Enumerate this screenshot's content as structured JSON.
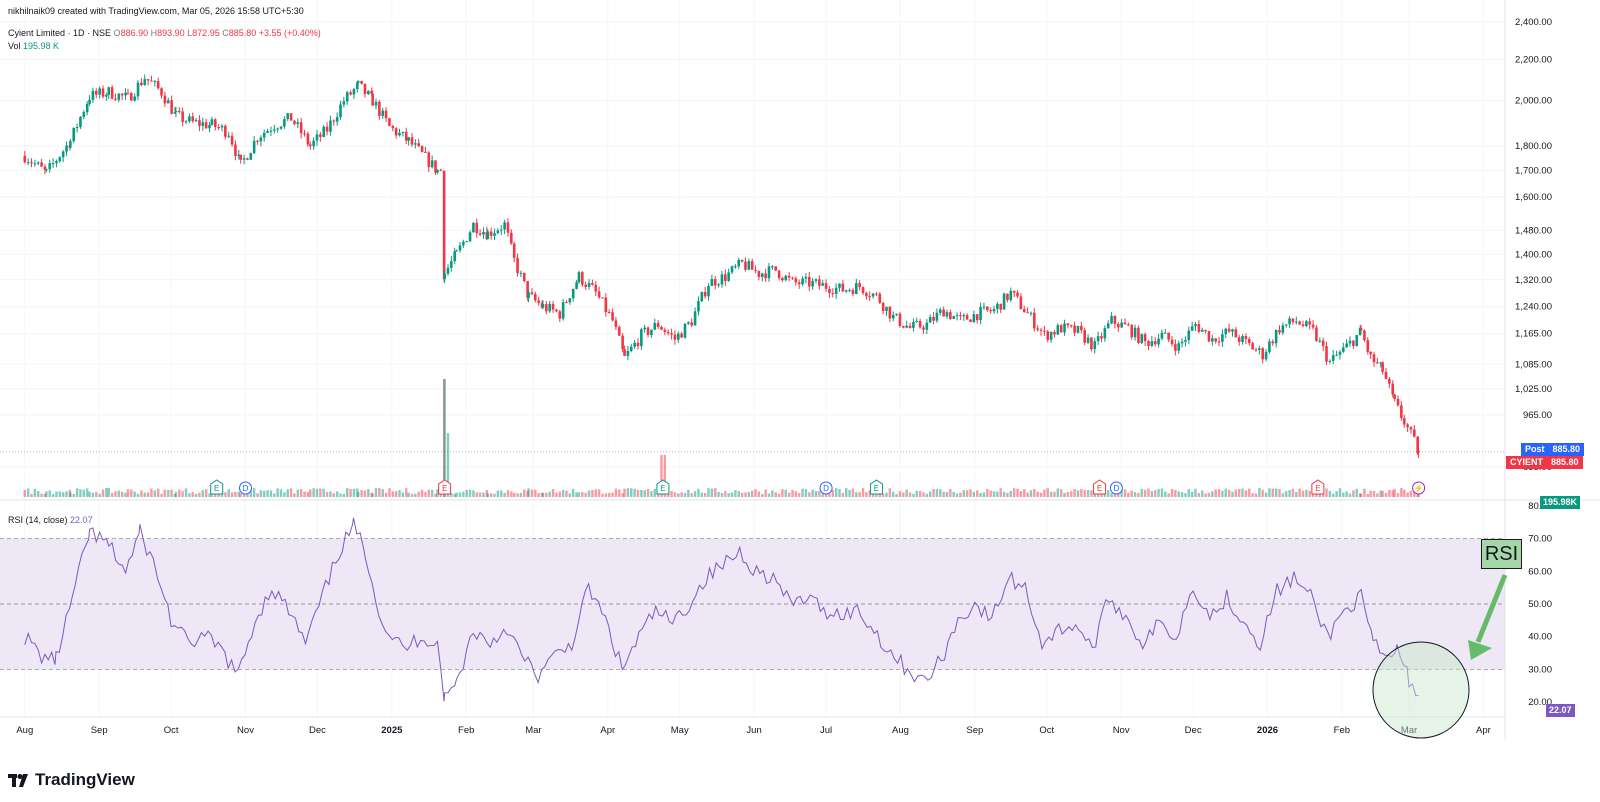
{
  "header": {
    "credit": "nikhilnaik09 created with TradingView.com, Mar 05, 2026 15:58 UTC+5:30",
    "symbol": "Cyient Limited · 1D · NSE",
    "open_label": "O",
    "open": "886.90",
    "high_label": "H",
    "high": "893.90",
    "low_label": "L",
    "low": "872.95",
    "close_label": "C",
    "close": "885.80",
    "change": "+3.55 (+0.40%)",
    "vol_label": "Vol",
    "vol_value": "195.98 K"
  },
  "rsi_header": {
    "label": "RSI (14, close)",
    "value": "22.07"
  },
  "badges": {
    "post_label": "Post",
    "post_value": "885.80",
    "ticker_label": "CYIENT",
    "ticker_value": "885.80",
    "vol_value": "195.98K",
    "rsi_value": "22.07"
  },
  "annotation": {
    "text": "RSI"
  },
  "brand": {
    "name": "TradingView"
  },
  "colors": {
    "up": "#089981",
    "down": "#f23645",
    "rsi_line": "#7e57c2",
    "rsi_band": "#ede7f6",
    "accent_blue": "#2962ff"
  },
  "chart_data": [
    {
      "type": "candlestick",
      "scale": "log",
      "price_axis_ticks": [
        2400,
        2200,
        2000,
        1800,
        1700,
        1600,
        1480,
        1400,
        1320,
        1240,
        1165,
        1085,
        1025,
        965,
        855
      ],
      "time_axis_labels": [
        "Aug",
        "Sep",
        "Oct",
        "Nov",
        "Dec",
        "2025",
        "Feb",
        "Mar",
        "Apr",
        "May",
        "Jun",
        "Jul",
        "Aug",
        "Sep",
        "Oct",
        "Nov",
        "Dec",
        "2026",
        "Feb",
        "Mar",
        "Apr"
      ],
      "price_path": [
        {
          "date": "2024-08-01",
          "close": 1760
        },
        {
          "date": "2024-08-10",
          "close": 1690
        },
        {
          "date": "2024-08-20",
          "close": 1820
        },
        {
          "date": "2024-08-28",
          "close": 2020
        },
        {
          "date": "2024-09-05",
          "close": 2040
        },
        {
          "date": "2024-09-13",
          "close": 2010
        },
        {
          "date": "2024-09-20",
          "close": 2110
        },
        {
          "date": "2024-09-27",
          "close": 2040
        },
        {
          "date": "2024-10-03",
          "close": 1930
        },
        {
          "date": "2024-10-10",
          "close": 1900
        },
        {
          "date": "2024-10-18",
          "close": 1890
        },
        {
          "date": "2024-10-25",
          "close": 1860
        },
        {
          "date": "2024-10-30",
          "close": 1720
        },
        {
          "date": "2024-11-06",
          "close": 1840
        },
        {
          "date": "2024-11-13",
          "close": 1890
        },
        {
          "date": "2024-11-20",
          "close": 1920
        },
        {
          "date": "2024-11-28",
          "close": 1800
        },
        {
          "date": "2024-12-05",
          "close": 1870
        },
        {
          "date": "2024-12-12",
          "close": 2000
        },
        {
          "date": "2024-12-18",
          "close": 2070
        },
        {
          "date": "2024-12-24",
          "close": 2000
        },
        {
          "date": "2024-12-31",
          "close": 1880
        },
        {
          "date": "2025-01-08",
          "close": 1820
        },
        {
          "date": "2025-01-15",
          "close": 1750
        },
        {
          "date": "2025-01-20",
          "close": 1700
        },
        {
          "date": "2025-01-23",
          "close": 1340
        },
        {
          "date": "2025-01-28",
          "close": 1400
        },
        {
          "date": "2025-02-04",
          "close": 1500
        },
        {
          "date": "2025-02-10",
          "close": 1470
        },
        {
          "date": "2025-02-17",
          "close": 1500
        },
        {
          "date": "2025-02-21",
          "close": 1380
        },
        {
          "date": "2025-02-27",
          "close": 1270
        },
        {
          "date": "2025-03-05",
          "close": 1240
        },
        {
          "date": "2025-03-12",
          "close": 1220
        },
        {
          "date": "2025-03-20",
          "close": 1330
        },
        {
          "date": "2025-03-27",
          "close": 1280
        },
        {
          "date": "2025-04-03",
          "close": 1200
        },
        {
          "date": "2025-04-08",
          "close": 1100
        },
        {
          "date": "2025-04-15",
          "close": 1160
        },
        {
          "date": "2025-04-22",
          "close": 1190
        },
        {
          "date": "2025-04-29",
          "close": 1150
        },
        {
          "date": "2025-05-06",
          "close": 1200
        },
        {
          "date": "2025-05-13",
          "close": 1310
        },
        {
          "date": "2025-05-20",
          "close": 1330
        },
        {
          "date": "2025-05-27",
          "close": 1370
        },
        {
          "date": "2025-06-03",
          "close": 1340
        },
        {
          "date": "2025-06-10",
          "close": 1350
        },
        {
          "date": "2025-06-17",
          "close": 1310
        },
        {
          "date": "2025-06-24",
          "close": 1310
        },
        {
          "date": "2025-07-01",
          "close": 1300
        },
        {
          "date": "2025-07-08",
          "close": 1290
        },
        {
          "date": "2025-07-15",
          "close": 1300
        },
        {
          "date": "2025-07-22",
          "close": 1270
        },
        {
          "date": "2025-07-29",
          "close": 1210
        },
        {
          "date": "2025-08-05",
          "close": 1180
        },
        {
          "date": "2025-08-12",
          "close": 1190
        },
        {
          "date": "2025-08-19",
          "close": 1230
        },
        {
          "date": "2025-08-26",
          "close": 1200
        },
        {
          "date": "2025-09-02",
          "close": 1220
        },
        {
          "date": "2025-09-09",
          "close": 1230
        },
        {
          "date": "2025-09-16",
          "close": 1280
        },
        {
          "date": "2025-09-23",
          "close": 1220
        },
        {
          "date": "2025-09-30",
          "close": 1160
        },
        {
          "date": "2025-10-07",
          "close": 1180
        },
        {
          "date": "2025-10-14",
          "close": 1170
        },
        {
          "date": "2025-10-21",
          "close": 1130
        },
        {
          "date": "2025-10-28",
          "close": 1200
        },
        {
          "date": "2025-11-04",
          "close": 1180
        },
        {
          "date": "2025-11-11",
          "close": 1140
        },
        {
          "date": "2025-11-18",
          "close": 1160
        },
        {
          "date": "2025-11-25",
          "close": 1130
        },
        {
          "date": "2025-12-02",
          "close": 1190
        },
        {
          "date": "2025-12-09",
          "close": 1150
        },
        {
          "date": "2025-12-16",
          "close": 1170
        },
        {
          "date": "2025-12-23",
          "close": 1140
        },
        {
          "date": "2025-12-30",
          "close": 1110
        },
        {
          "date": "2026-01-06",
          "close": 1180
        },
        {
          "date": "2026-01-13",
          "close": 1200
        },
        {
          "date": "2026-01-20",
          "close": 1170
        },
        {
          "date": "2026-01-27",
          "close": 1090
        },
        {
          "date": "2026-02-03",
          "close": 1130
        },
        {
          "date": "2026-02-09",
          "close": 1170
        },
        {
          "date": "2026-02-13",
          "close": 1100
        },
        {
          "date": "2026-02-18",
          "close": 1070
        },
        {
          "date": "2026-02-23",
          "close": 990
        },
        {
          "date": "2026-02-27",
          "close": 950
        },
        {
          "date": "2026-03-05",
          "close": 885.8
        }
      ],
      "events": [
        {
          "date": "2024-10-20",
          "label": "E"
        },
        {
          "date": "2024-11-01",
          "label": "D"
        },
        {
          "date": "2025-01-23",
          "label": "E"
        },
        {
          "date": "2025-04-24",
          "label": "E"
        },
        {
          "date": "2025-07-01",
          "label": "D"
        },
        {
          "date": "2025-07-22",
          "label": "E"
        },
        {
          "date": "2025-10-23",
          "label": "E"
        },
        {
          "date": "2025-10-30",
          "label": "D"
        },
        {
          "date": "2026-01-22",
          "label": "E"
        },
        {
          "date": "2026-03-05",
          "label": "⚡"
        }
      ],
      "volume_spikes": [
        {
          "date": "2025-01-23",
          "volume": "largest"
        },
        {
          "date": "2025-01-24",
          "volume": "large"
        },
        {
          "date": "2025-04-24",
          "volume": "medium"
        }
      ]
    },
    {
      "type": "line",
      "title": "RSI (14, close)",
      "y_axis_ticks": [
        80,
        70,
        60,
        50,
        40,
        30,
        20
      ],
      "bands": {
        "upper": 70,
        "middle": 50,
        "lower": 30
      },
      "series": [
        {
          "name": "RSI",
          "points": [
            {
              "date": "2024-08-01",
              "value": 40
            },
            {
              "date": "2024-08-08",
              "value": 34
            },
            {
              "date": "2024-08-14",
              "value": 33
            },
            {
              "date": "2024-08-22",
              "value": 55
            },
            {
              "date": "2024-08-28",
              "value": 72
            },
            {
              "date": "2024-09-05",
              "value": 68
            },
            {
              "date": "2024-09-12",
              "value": 60
            },
            {
              "date": "2024-09-18",
              "value": 72
            },
            {
              "date": "2024-09-24",
              "value": 62
            },
            {
              "date": "2024-10-01",
              "value": 45
            },
            {
              "date": "2024-10-08",
              "value": 38
            },
            {
              "date": "2024-10-15",
              "value": 40
            },
            {
              "date": "2024-10-22",
              "value": 36
            },
            {
              "date": "2024-10-29",
              "value": 28
            },
            {
              "date": "2024-11-05",
              "value": 45
            },
            {
              "date": "2024-11-12",
              "value": 55
            },
            {
              "date": "2024-11-19",
              "value": 48
            },
            {
              "date": "2024-11-26",
              "value": 38
            },
            {
              "date": "2024-12-03",
              "value": 52
            },
            {
              "date": "2024-12-10",
              "value": 66
            },
            {
              "date": "2024-12-16",
              "value": 74
            },
            {
              "date": "2024-12-21",
              "value": 66
            },
            {
              "date": "2024-12-28",
              "value": 44
            },
            {
              "date": "2025-01-06",
              "value": 36
            },
            {
              "date": "2025-01-13",
              "value": 40
            },
            {
              "date": "2025-01-20",
              "value": 38
            },
            {
              "date": "2025-01-23",
              "value": 21
            },
            {
              "date": "2025-01-28",
              "value": 26
            },
            {
              "date": "2025-02-04",
              "value": 42
            },
            {
              "date": "2025-02-11",
              "value": 38
            },
            {
              "date": "2025-02-18",
              "value": 43
            },
            {
              "date": "2025-02-24",
              "value": 34
            },
            {
              "date": "2025-03-03",
              "value": 28
            },
            {
              "date": "2025-03-10",
              "value": 34
            },
            {
              "date": "2025-03-17",
              "value": 38
            },
            {
              "date": "2025-03-24",
              "value": 55
            },
            {
              "date": "2025-03-31",
              "value": 45
            },
            {
              "date": "2025-04-07",
              "value": 30
            },
            {
              "date": "2025-04-14",
              "value": 40
            },
            {
              "date": "2025-04-21",
              "value": 48
            },
            {
              "date": "2025-04-28",
              "value": 44
            },
            {
              "date": "2025-05-05",
              "value": 50
            },
            {
              "date": "2025-05-12",
              "value": 58
            },
            {
              "date": "2025-05-19",
              "value": 62
            },
            {
              "date": "2025-05-26",
              "value": 66
            },
            {
              "date": "2025-06-02",
              "value": 60
            },
            {
              "date": "2025-06-09",
              "value": 58
            },
            {
              "date": "2025-06-16",
              "value": 50
            },
            {
              "date": "2025-06-23",
              "value": 52
            },
            {
              "date": "2025-06-30",
              "value": 48
            },
            {
              "date": "2025-07-07",
              "value": 47
            },
            {
              "date": "2025-07-14",
              "value": 48
            },
            {
              "date": "2025-07-21",
              "value": 42
            },
            {
              "date": "2025-07-28",
              "value": 35
            },
            {
              "date": "2025-08-04",
              "value": 30
            },
            {
              "date": "2025-08-11",
              "value": 26
            },
            {
              "date": "2025-08-18",
              "value": 33
            },
            {
              "date": "2025-08-25",
              "value": 45
            },
            {
              "date": "2025-09-01",
              "value": 50
            },
            {
              "date": "2025-09-08",
              "value": 45
            },
            {
              "date": "2025-09-15",
              "value": 58
            },
            {
              "date": "2025-09-22",
              "value": 55
            },
            {
              "date": "2025-09-29",
              "value": 38
            },
            {
              "date": "2025-10-06",
              "value": 42
            },
            {
              "date": "2025-10-13",
              "value": 44
            },
            {
              "date": "2025-10-20",
              "value": 36
            },
            {
              "date": "2025-10-27",
              "value": 52
            },
            {
              "date": "2025-11-03",
              "value": 46
            },
            {
              "date": "2025-11-10",
              "value": 38
            },
            {
              "date": "2025-11-17",
              "value": 44
            },
            {
              "date": "2025-11-24",
              "value": 40
            },
            {
              "date": "2025-12-01",
              "value": 56
            },
            {
              "date": "2025-12-08",
              "value": 46
            },
            {
              "date": "2025-12-15",
              "value": 52
            },
            {
              "date": "2025-12-22",
              "value": 45
            },
            {
              "date": "2025-12-29",
              "value": 38
            },
            {
              "date": "2026-01-05",
              "value": 54
            },
            {
              "date": "2026-01-12",
              "value": 58
            },
            {
              "date": "2026-01-19",
              "value": 52
            },
            {
              "date": "2026-01-26",
              "value": 40
            },
            {
              "date": "2026-02-02",
              "value": 48
            },
            {
              "date": "2026-02-09",
              "value": 52
            },
            {
              "date": "2026-02-14",
              "value": 38
            },
            {
              "date": "2026-02-19",
              "value": 33
            },
            {
              "date": "2026-02-24",
              "value": 36
            },
            {
              "date": "2026-03-01",
              "value": 27
            },
            {
              "date": "2026-03-05",
              "value": 22.07
            }
          ]
        }
      ]
    }
  ]
}
